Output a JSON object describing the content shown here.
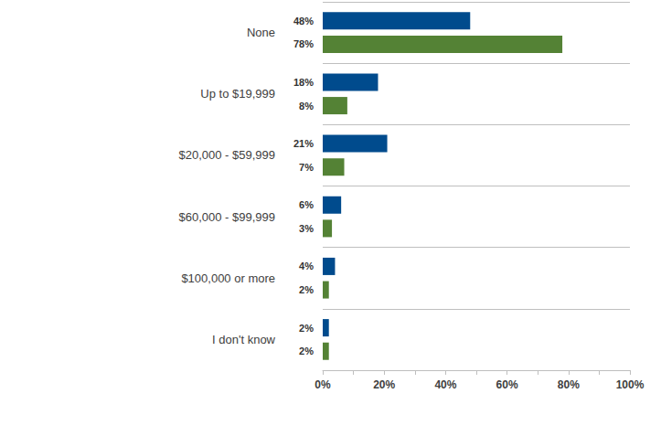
{
  "chart_data": {
    "type": "bar",
    "orientation": "horizontal",
    "data_labels": true,
    "grid": false,
    "categories": [
      "None",
      "Up to $19,999",
      "$20,000 - $59,999",
      "$60,000 - $99,999",
      "$100,000 or more",
      "I don't know"
    ],
    "series": [
      {
        "color": "#004b8d",
        "values": [
          48,
          18,
          21,
          6,
          4,
          2
        ],
        "value_labels": [
          "48%",
          "18%",
          "21%",
          "6%",
          "4%",
          "2%"
        ]
      },
      {
        "color": "#548235",
        "values": [
          78,
          8,
          7,
          3,
          2,
          2
        ],
        "value_labels": [
          "78%",
          "8%",
          "7%",
          "3%",
          "2%",
          "2%"
        ]
      }
    ],
    "xlim": [
      0,
      100
    ],
    "xticks": [
      {
        "value": 0,
        "label": "0%"
      },
      {
        "value": 20,
        "label": "20%"
      },
      {
        "value": 40,
        "label": "40%"
      },
      {
        "value": 60,
        "label": "60%"
      },
      {
        "value": 80,
        "label": "80%"
      },
      {
        "value": 100,
        "label": "100%"
      }
    ]
  }
}
